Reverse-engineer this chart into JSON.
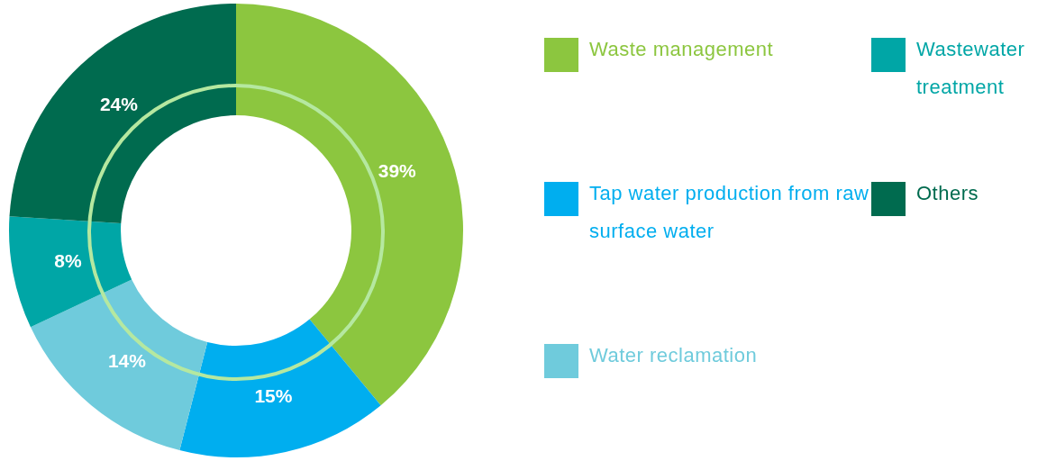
{
  "chart_data": {
    "type": "donut",
    "categories": [
      "Waste management",
      "Tap water production from raw surface water",
      "Water reclamation",
      "Wastewater treatment",
      "Others"
    ],
    "values": [
      39,
      15,
      14,
      8,
      24
    ],
    "colors": [
      "#8cc63f",
      "#00aeef",
      "#6fcbdc",
      "#00a6a6",
      "#006b4f"
    ],
    "value_labels": [
      "39%",
      "15%",
      "14%",
      "8%",
      "24%"
    ],
    "legend": "right"
  }
}
